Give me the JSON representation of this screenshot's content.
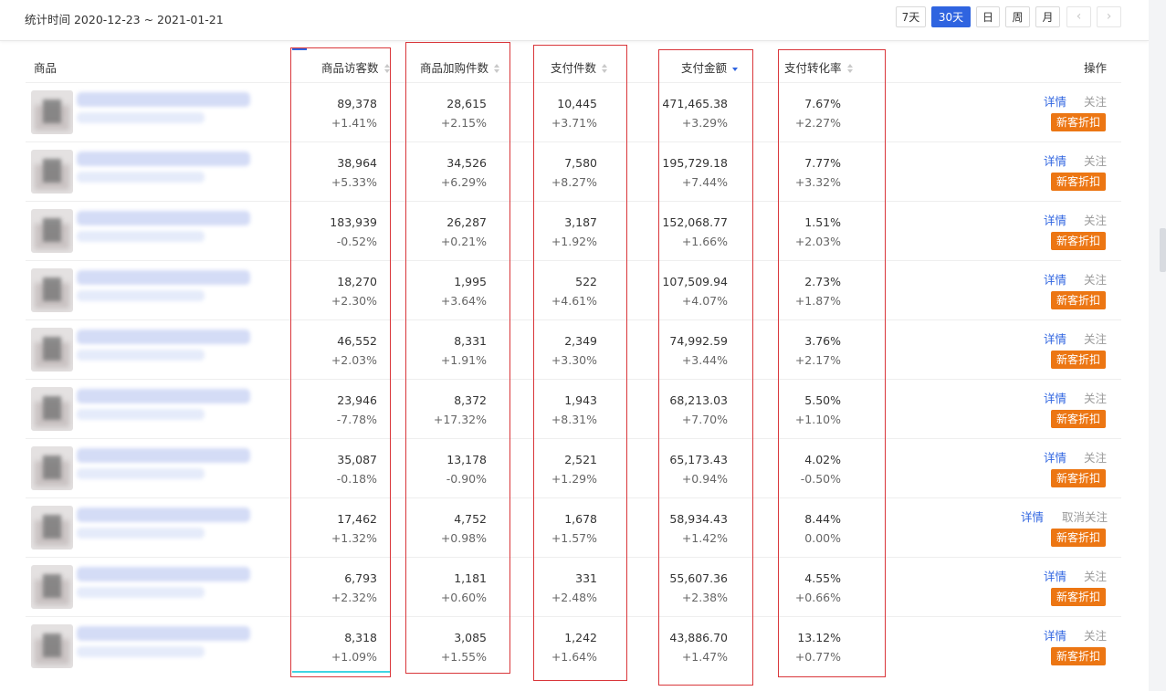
{
  "header": {
    "stat_label": "统计时间 2020-12-23 ~ 2021-01-21",
    "periods": [
      "7天",
      "30天",
      "日",
      "周",
      "月"
    ],
    "active_period": "30天",
    "prev_icon": "chevron-left-icon",
    "next_icon": "chevron-right-icon"
  },
  "table": {
    "columns": {
      "product": "商品",
      "visitors": "商品访客数",
      "cart": "商品加购件数",
      "pay_items": "支付件数",
      "pay_amount": "支付金额",
      "conversion": "支付转化率",
      "ops": "操作"
    },
    "sorted_column": "pay_amount",
    "sort_order": "desc",
    "rows": [
      {
        "visitors": "89,378",
        "visitors_d": "+1.41%",
        "cart": "28,615",
        "cart_d": "+2.15%",
        "pay_items": "10,445",
        "pay_items_d": "+3.71%",
        "amount": "471,465.38",
        "amount_d": "+3.29%",
        "conv": "7.67%",
        "conv_d": "+2.27%",
        "detail": "详情",
        "follow": "关注",
        "tag": "新客折扣"
      },
      {
        "visitors": "38,964",
        "visitors_d": "+5.33%",
        "cart": "34,526",
        "cart_d": "+6.29%",
        "pay_items": "7,580",
        "pay_items_d": "+8.27%",
        "amount": "195,729.18",
        "amount_d": "+7.44%",
        "conv": "7.77%",
        "conv_d": "+3.32%",
        "detail": "详情",
        "follow": "关注",
        "tag": "新客折扣"
      },
      {
        "visitors": "183,939",
        "visitors_d": "-0.52%",
        "cart": "26,287",
        "cart_d": "+0.21%",
        "pay_items": "3,187",
        "pay_items_d": "+1.92%",
        "amount": "152,068.77",
        "amount_d": "+1.66%",
        "conv": "1.51%",
        "conv_d": "+2.03%",
        "detail": "详情",
        "follow": "关注",
        "tag": "新客折扣"
      },
      {
        "visitors": "18,270",
        "visitors_d": "+2.30%",
        "cart": "1,995",
        "cart_d": "+3.64%",
        "pay_items": "522",
        "pay_items_d": "+4.61%",
        "amount": "107,509.94",
        "amount_d": "+4.07%",
        "conv": "2.73%",
        "conv_d": "+1.87%",
        "detail": "详情",
        "follow": "关注",
        "tag": "新客折扣"
      },
      {
        "visitors": "46,552",
        "visitors_d": "+2.03%",
        "cart": "8,331",
        "cart_d": "+1.91%",
        "pay_items": "2,349",
        "pay_items_d": "+3.30%",
        "amount": "74,992.59",
        "amount_d": "+3.44%",
        "conv": "3.76%",
        "conv_d": "+2.17%",
        "detail": "详情",
        "follow": "关注",
        "tag": "新客折扣"
      },
      {
        "visitors": "23,946",
        "visitors_d": "-7.78%",
        "cart": "8,372",
        "cart_d": "+17.32%",
        "pay_items": "1,943",
        "pay_items_d": "+8.31%",
        "amount": "68,213.03",
        "amount_d": "+7.70%",
        "conv": "5.50%",
        "conv_d": "+1.10%",
        "detail": "详情",
        "follow": "关注",
        "tag": "新客折扣"
      },
      {
        "visitors": "35,087",
        "visitors_d": "-0.18%",
        "cart": "13,178",
        "cart_d": "-0.90%",
        "pay_items": "2,521",
        "pay_items_d": "+1.29%",
        "amount": "65,173.43",
        "amount_d": "+0.94%",
        "conv": "4.02%",
        "conv_d": "-0.50%",
        "detail": "详情",
        "follow": "关注",
        "tag": "新客折扣"
      },
      {
        "visitors": "17,462",
        "visitors_d": "+1.32%",
        "cart": "4,752",
        "cart_d": "+0.98%",
        "pay_items": "1,678",
        "pay_items_d": "+1.57%",
        "amount": "58,934.43",
        "amount_d": "+1.42%",
        "conv": "8.44%",
        "conv_d": "0.00%",
        "detail": "详情",
        "follow": "取消关注",
        "tag": "新客折扣"
      },
      {
        "visitors": "6,793",
        "visitors_d": "+2.32%",
        "cart": "1,181",
        "cart_d": "+0.60%",
        "pay_items": "331",
        "pay_items_d": "+2.48%",
        "amount": "55,607.36",
        "amount_d": "+2.38%",
        "conv": "4.55%",
        "conv_d": "+0.66%",
        "detail": "详情",
        "follow": "关注",
        "tag": "新客折扣"
      },
      {
        "visitors": "8,318",
        "visitors_d": "+1.09%",
        "cart": "3,085",
        "cart_d": "+1.55%",
        "pay_items": "1,242",
        "pay_items_d": "+1.64%",
        "amount": "43,886.70",
        "amount_d": "+1.47%",
        "conv": "13.12%",
        "conv_d": "+0.77%",
        "detail": "详情",
        "follow": "关注",
        "tag": "新客折扣"
      }
    ]
  },
  "colors": {
    "accent": "#2f64e0",
    "tag": "#ec7613",
    "highlight_box": "#d9363a"
  }
}
